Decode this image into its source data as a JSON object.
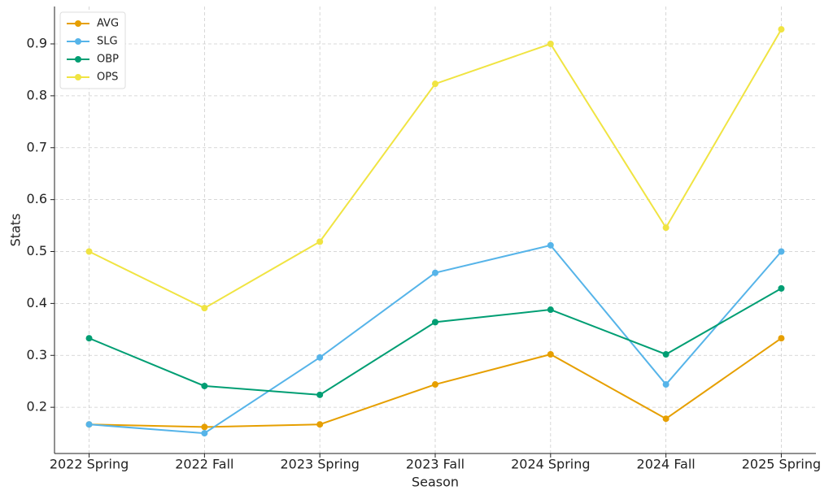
{
  "chart_data": {
    "type": "line",
    "x_label": "Season",
    "y_label": "Stats",
    "categories": [
      "2022 Spring",
      "2022 Fall",
      "2023 Spring",
      "2023 Fall",
      "2024 Spring",
      "2024 Fall",
      "2025 Spring"
    ],
    "series": [
      {
        "name": "AVG",
        "color": "#E69F00",
        "values": [
          0.167,
          0.162,
          0.167,
          0.244,
          0.302,
          0.178,
          0.333
        ]
      },
      {
        "name": "SLG",
        "color": "#56B4E9",
        "values": [
          0.167,
          0.15,
          0.296,
          0.459,
          0.512,
          0.244,
          0.5
        ]
      },
      {
        "name": "OBP",
        "color": "#009E73",
        "values": [
          0.333,
          0.241,
          0.224,
          0.364,
          0.388,
          0.302,
          0.429
        ]
      },
      {
        "name": "OPS",
        "color": "#F0E442",
        "values": [
          0.5,
          0.391,
          0.519,
          0.823,
          0.9,
          0.546,
          0.928
        ]
      }
    ],
    "ylim": [
      0.111,
      0.972
    ],
    "yticks": [
      0.2,
      0.3,
      0.4,
      0.5,
      0.6,
      0.7,
      0.8,
      0.9
    ],
    "grid": true,
    "legend": "upper left"
  }
}
